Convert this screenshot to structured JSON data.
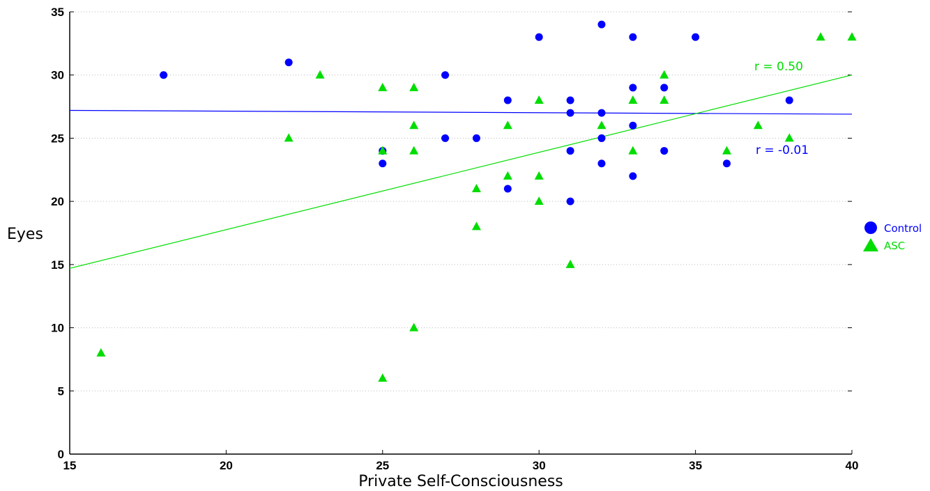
{
  "chart_data": {
    "type": "scatter",
    "xlabel": "Private Self-Consciousness",
    "ylabel": "Eyes",
    "xlim": [
      15,
      40
    ],
    "ylim": [
      0,
      35
    ],
    "xticks": [
      15,
      20,
      25,
      30,
      35,
      40
    ],
    "yticks": [
      0,
      5,
      10,
      15,
      20,
      25,
      30,
      35
    ],
    "grid": "horizontal dotted",
    "legend_position": "right",
    "series": [
      {
        "name": "Control",
        "marker": "circle",
        "color": "#0000ff",
        "points": [
          [
            18,
            30
          ],
          [
            22,
            31
          ],
          [
            25,
            24
          ],
          [
            25,
            23
          ],
          [
            27,
            30
          ],
          [
            27,
            25
          ],
          [
            28,
            25
          ],
          [
            29,
            28
          ],
          [
            29,
            21
          ],
          [
            30,
            33
          ],
          [
            31,
            28
          ],
          [
            31,
            27
          ],
          [
            31,
            24
          ],
          [
            31,
            20
          ],
          [
            32,
            34
          ],
          [
            32,
            27
          ],
          [
            32,
            25
          ],
          [
            32,
            23
          ],
          [
            33,
            33
          ],
          [
            33,
            29
          ],
          [
            33,
            26
          ],
          [
            33,
            22
          ],
          [
            34,
            29
          ],
          [
            34,
            24
          ],
          [
            35,
            33
          ],
          [
            36,
            23
          ],
          [
            38,
            28
          ]
        ],
        "fit": {
          "x": [
            15,
            40
          ],
          "y": [
            27.2,
            26.9
          ]
        },
        "annotation": "r = -0.01"
      },
      {
        "name": "ASC",
        "marker": "triangle",
        "color": "#00dd00",
        "points": [
          [
            16,
            8
          ],
          [
            22,
            25
          ],
          [
            23,
            30
          ],
          [
            25,
            29
          ],
          [
            25,
            24
          ],
          [
            25,
            6
          ],
          [
            26,
            29
          ],
          [
            26,
            26
          ],
          [
            26,
            24
          ],
          [
            26,
            10
          ],
          [
            28,
            21
          ],
          [
            28,
            18
          ],
          [
            29,
            26
          ],
          [
            29,
            22
          ],
          [
            30,
            28
          ],
          [
            30,
            22
          ],
          [
            30,
            20
          ],
          [
            31,
            15
          ],
          [
            32,
            26
          ],
          [
            33,
            28
          ],
          [
            33,
            24
          ],
          [
            34,
            30
          ],
          [
            34,
            28
          ],
          [
            36,
            24
          ],
          [
            37,
            26
          ],
          [
            38,
            25
          ],
          [
            39,
            33
          ],
          [
            40,
            33
          ]
        ],
        "fit": {
          "x": [
            15,
            40
          ],
          "y": [
            14.7,
            30
          ]
        },
        "annotation": "r = 0.50"
      }
    ]
  }
}
